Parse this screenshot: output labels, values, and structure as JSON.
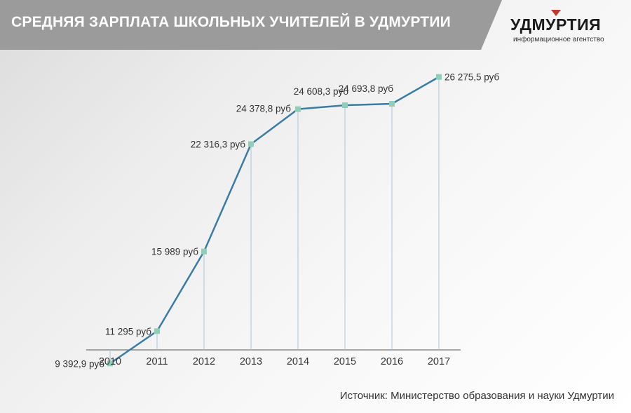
{
  "header": {
    "title": "СРЕДНЯЯ ЗАРПЛАТА ШКОЛЬНЫХ УЧИТЕЛЕЙ В УДМУРТИИ",
    "bar_color": "#9b9b9b"
  },
  "logo": {
    "name": "УДМУРТИЯ",
    "subtitle": "информационное агентство",
    "mark_color": "#c0392b"
  },
  "source": "Источник: Министерство образования и науки Удмуртии",
  "chart_data": {
    "type": "line",
    "x": [
      "2010",
      "2011",
      "2012",
      "2013",
      "2014",
      "2015",
      "2016",
      "2017"
    ],
    "series": [
      {
        "values": [
          9392.9,
          11295,
          15989,
          22316.3,
          24378.8,
          24608.3,
          24693.8,
          26275.5
        ],
        "labels": [
          "9 392,9 руб",
          "11 295 руб",
          "15 989 руб",
          "22 316,3 руб",
          "24 378,8 руб",
          "24 608,3 руб",
          "24 693,8 руб",
          "26 275,5 руб"
        ],
        "color": "#3a7ca5",
        "marker_color": "#8fcfb8"
      }
    ],
    "ylim": [
      0,
      28000
    ],
    "grid": false,
    "title": "",
    "xlabel": "",
    "ylabel": ""
  }
}
